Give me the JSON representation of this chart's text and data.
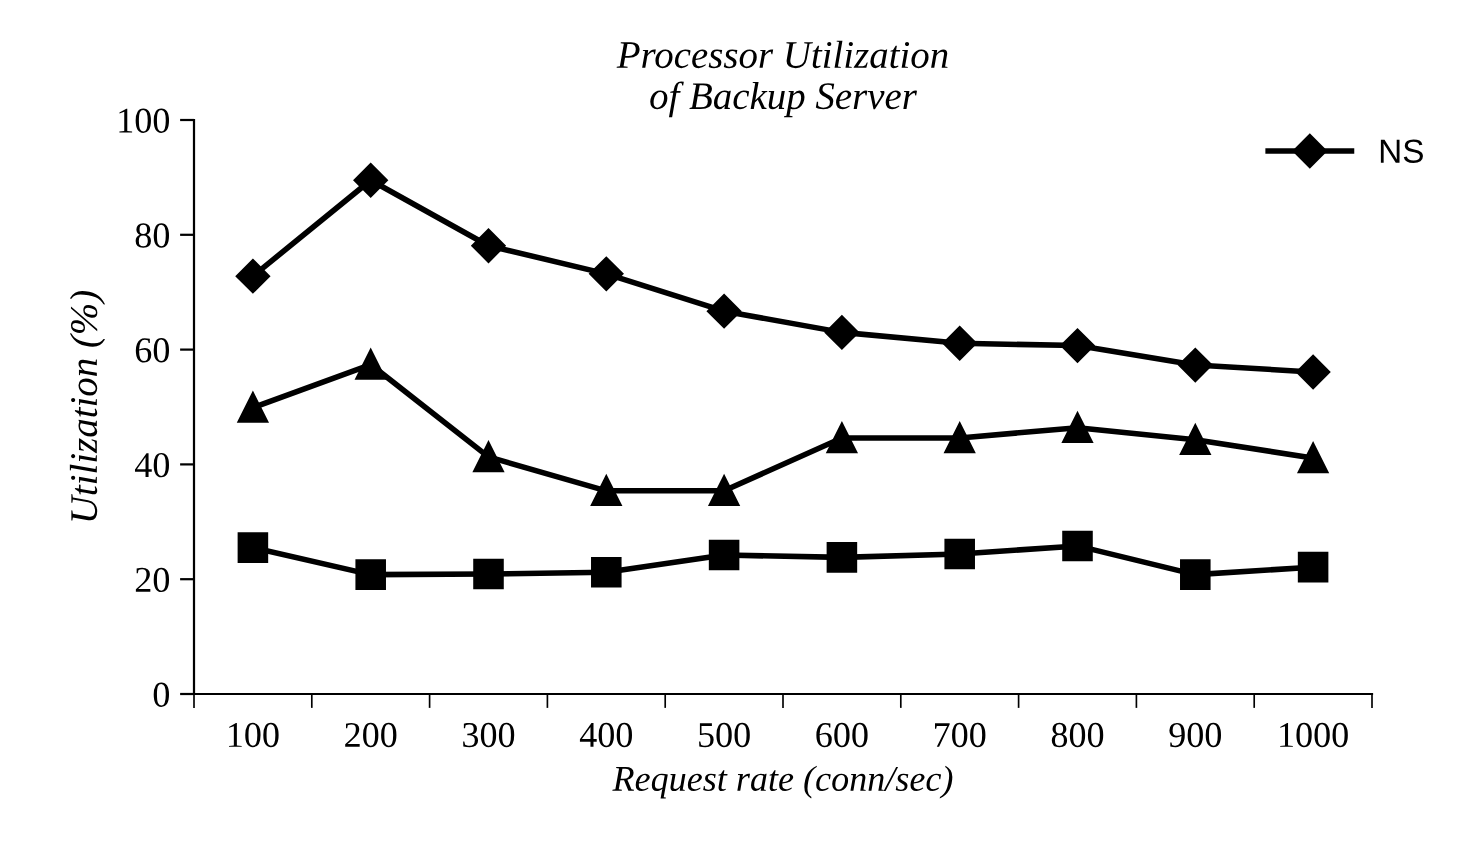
{
  "chart_data": {
    "type": "line",
    "title": "Processor Utilization\nof Backup Server",
    "xlabel": "Request rate (conn/sec)",
    "ylabel": "Utilization (%)",
    "categories": [
      "100",
      "200",
      "300",
      "400",
      "500",
      "600",
      "700",
      "800",
      "900",
      "1000"
    ],
    "series": [
      {
        "name": "NS",
        "color": "#000000",
        "marker": "diamond",
        "values": [
          72.8,
          89.5,
          78.1,
          73.2,
          66.7,
          63.0,
          61.1,
          60.7,
          57.3,
          56.1
        ]
      },
      {
        "color": "#000000",
        "marker": "triangle",
        "values": [
          49.9,
          57.4,
          41.3,
          35.4,
          35.4,
          44.6,
          44.6,
          46.4,
          44.3,
          41.1
        ]
      },
      {
        "color": "#000000",
        "marker": "square",
        "values": [
          25.5,
          20.8,
          20.9,
          21.2,
          24.2,
          23.8,
          24.4,
          25.8,
          20.8,
          22.1
        ]
      }
    ],
    "ylim": [
      0,
      100
    ],
    "yticks": [
      0,
      20,
      40,
      60,
      80,
      100
    ],
    "grid": false,
    "legend": "top right",
    "line_style": "solid"
  }
}
